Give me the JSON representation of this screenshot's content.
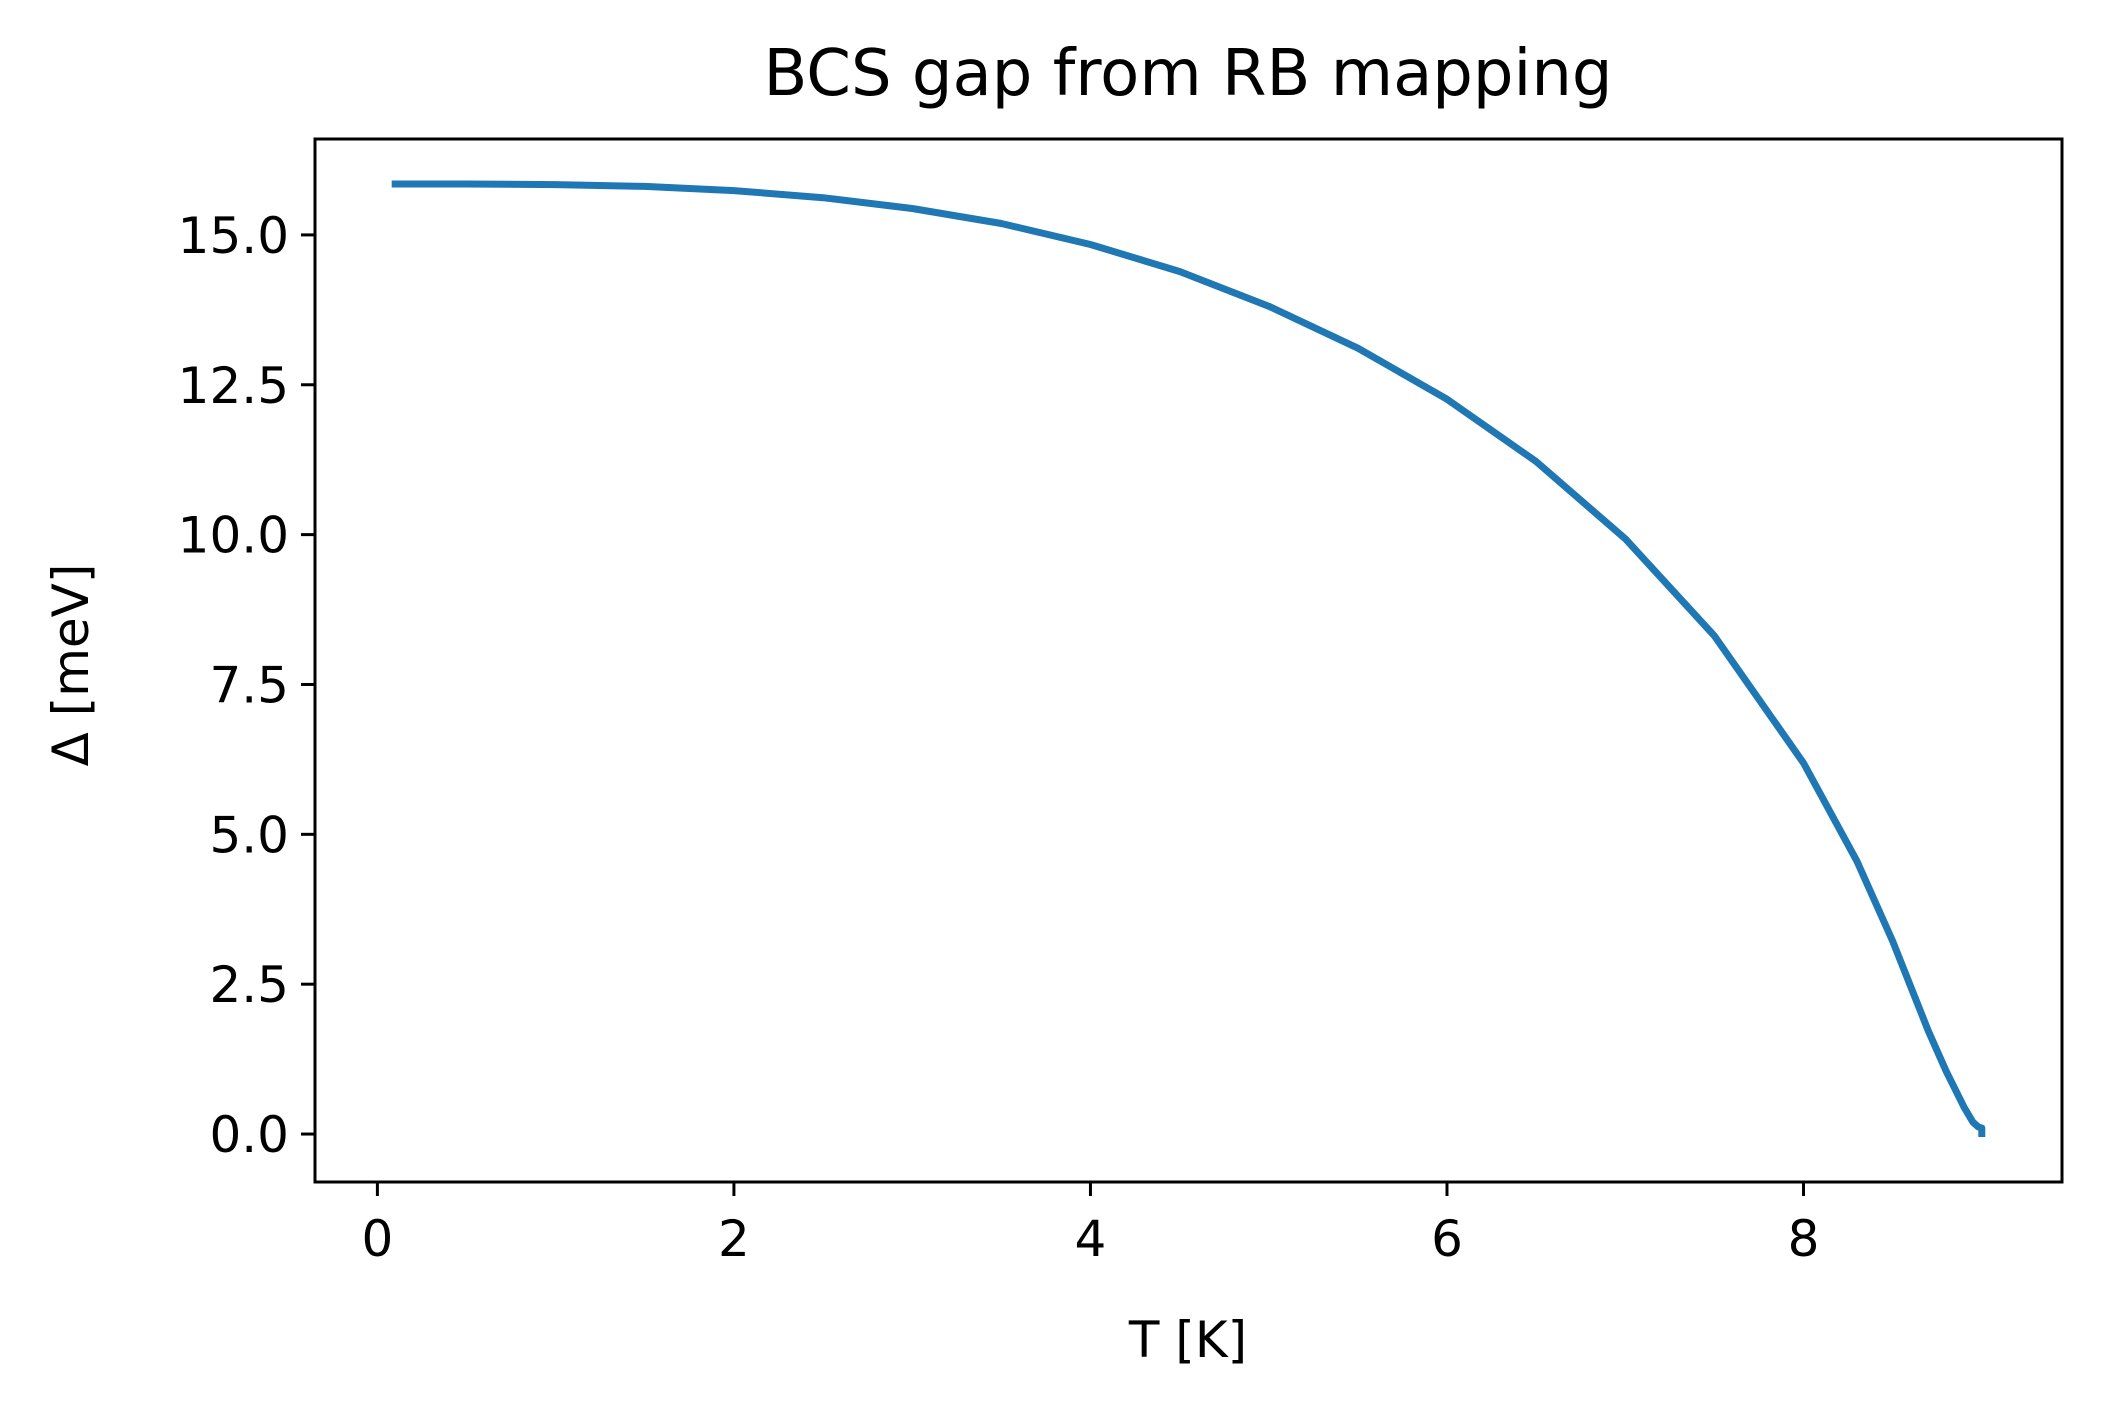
{
  "chart_data": {
    "type": "line",
    "title": "BCS gap from RB mapping",
    "xlabel": "T [K]",
    "ylabel": "Δ [meV]",
    "xlim": [
      -0.35,
      9.45
    ],
    "ylim": [
      -0.8,
      16.6
    ],
    "xticks": [
      0,
      2,
      4,
      6,
      8
    ],
    "yticks": [
      0.0,
      2.5,
      5.0,
      7.5,
      10.0,
      12.5,
      15.0
    ],
    "xtick_labels": [
      "0",
      "2",
      "4",
      "6",
      "8"
    ],
    "ytick_labels": [
      "0.0",
      "2.5",
      "5.0",
      "7.5",
      "10.0",
      "12.5",
      "15.0"
    ],
    "grid": false,
    "legend": "none",
    "series": [
      {
        "color": "#1f77b4",
        "x": [
          0.08,
          0.5,
          1.0,
          1.5,
          2.0,
          2.5,
          3.0,
          3.5,
          4.0,
          4.5,
          5.0,
          5.5,
          6.0,
          6.5,
          7.0,
          7.5,
          8.0,
          8.3,
          8.5,
          8.7,
          8.8,
          8.9,
          8.95,
          8.98,
          9.0,
          9.0
        ],
        "y": [
          15.85,
          15.85,
          15.84,
          15.81,
          15.74,
          15.62,
          15.44,
          15.19,
          14.84,
          14.39,
          13.81,
          13.11,
          12.26,
          11.22,
          9.93,
          8.31,
          6.19,
          4.55,
          3.22,
          1.72,
          1.05,
          0.45,
          0.2,
          0.12,
          0.1,
          -0.05
        ]
      }
    ]
  }
}
